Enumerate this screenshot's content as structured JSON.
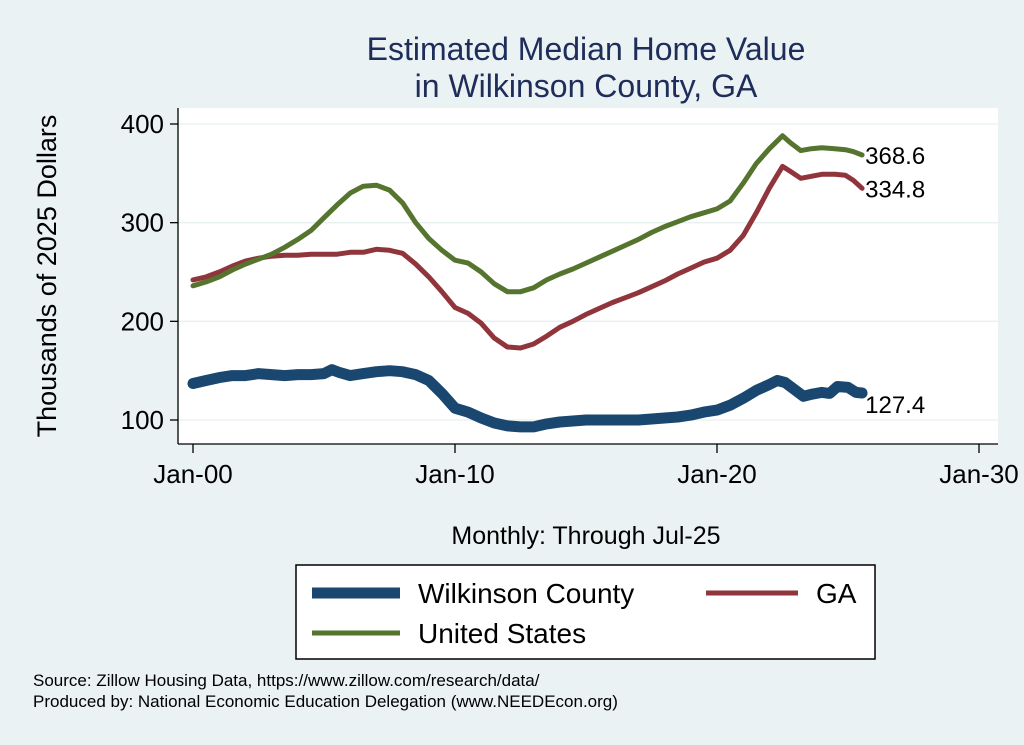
{
  "chart_data": {
    "type": "line",
    "title": [
      "Estimated Median Home Value",
      "in Wilkinson County, GA"
    ],
    "xlabel": "Monthly: Through Jul-25",
    "ylabel": "Thousands of 2025 Dollars",
    "xlim": [
      2000.0,
      2030.0
    ],
    "ylim": [
      100,
      400
    ],
    "x_ticks": [
      {
        "value": 2000,
        "label": "Jan-00"
      },
      {
        "value": 2010,
        "label": "Jan-10"
      },
      {
        "value": 2020,
        "label": "Jan-20"
      },
      {
        "value": 2030,
        "label": "Jan-30"
      }
    ],
    "y_ticks": [
      100,
      200,
      300,
      400
    ],
    "grid": true,
    "legend_position": "bottom",
    "series": [
      {
        "name": "Wilkinson County",
        "color": "#1a476f",
        "end_label": "127.4",
        "points": [
          [
            2000.0,
            137
          ],
          [
            2000.5,
            140
          ],
          [
            2001.0,
            143
          ],
          [
            2001.5,
            145
          ],
          [
            2002.0,
            145
          ],
          [
            2002.5,
            147
          ],
          [
            2003.0,
            146
          ],
          [
            2003.5,
            145
          ],
          [
            2004.0,
            146
          ],
          [
            2004.5,
            146
          ],
          [
            2005.0,
            147
          ],
          [
            2005.3,
            151
          ],
          [
            2005.6,
            148
          ],
          [
            2006.0,
            145
          ],
          [
            2006.5,
            147
          ],
          [
            2007.0,
            149
          ],
          [
            2007.5,
            150
          ],
          [
            2008.0,
            149
          ],
          [
            2008.5,
            146
          ],
          [
            2009.0,
            140
          ],
          [
            2009.5,
            127
          ],
          [
            2010.0,
            112
          ],
          [
            2010.5,
            108
          ],
          [
            2011.0,
            102
          ],
          [
            2011.5,
            97
          ],
          [
            2012.0,
            94
          ],
          [
            2012.5,
            93
          ],
          [
            2013.0,
            93
          ],
          [
            2013.5,
            96
          ],
          [
            2014.0,
            98
          ],
          [
            2014.5,
            99
          ],
          [
            2015.0,
            100
          ],
          [
            2015.5,
            100
          ],
          [
            2016.0,
            100
          ],
          [
            2016.5,
            100
          ],
          [
            2017.0,
            100
          ],
          [
            2017.5,
            101
          ],
          [
            2018.0,
            102
          ],
          [
            2018.5,
            103
          ],
          [
            2019.0,
            105
          ],
          [
            2019.5,
            108
          ],
          [
            2020.0,
            110
          ],
          [
            2020.5,
            115
          ],
          [
            2021.0,
            122
          ],
          [
            2021.5,
            130
          ],
          [
            2022.0,
            136
          ],
          [
            2022.3,
            140
          ],
          [
            2022.6,
            138
          ],
          [
            2023.0,
            130
          ],
          [
            2023.3,
            124
          ],
          [
            2023.6,
            126
          ],
          [
            2024.0,
            128
          ],
          [
            2024.3,
            127
          ],
          [
            2024.6,
            134
          ],
          [
            2025.0,
            133
          ],
          [
            2025.3,
            128
          ],
          [
            2025.54,
            127.4
          ]
        ]
      },
      {
        "name": "GA",
        "color": "#90353b",
        "end_label": "334.8",
        "points": [
          [
            2000.0,
            242
          ],
          [
            2000.5,
            245
          ],
          [
            2001.0,
            250
          ],
          [
            2001.5,
            256
          ],
          [
            2002.0,
            261
          ],
          [
            2002.5,
            264
          ],
          [
            2003.0,
            266
          ],
          [
            2003.5,
            267
          ],
          [
            2004.0,
            267
          ],
          [
            2004.5,
            268
          ],
          [
            2005.0,
            268
          ],
          [
            2005.5,
            268
          ],
          [
            2006.0,
            270
          ],
          [
            2006.5,
            270
          ],
          [
            2007.0,
            273
          ],
          [
            2007.5,
            272
          ],
          [
            2008.0,
            269
          ],
          [
            2008.5,
            258
          ],
          [
            2009.0,
            245
          ],
          [
            2009.5,
            230
          ],
          [
            2010.0,
            214
          ],
          [
            2010.5,
            208
          ],
          [
            2011.0,
            198
          ],
          [
            2011.5,
            183
          ],
          [
            2012.0,
            174
          ],
          [
            2012.5,
            173
          ],
          [
            2013.0,
            177
          ],
          [
            2013.5,
            185
          ],
          [
            2014.0,
            194
          ],
          [
            2014.5,
            200
          ],
          [
            2015.0,
            207
          ],
          [
            2015.5,
            213
          ],
          [
            2016.0,
            219
          ],
          [
            2016.5,
            224
          ],
          [
            2017.0,
            229
          ],
          [
            2017.5,
            235
          ],
          [
            2018.0,
            241
          ],
          [
            2018.5,
            248
          ],
          [
            2019.0,
            254
          ],
          [
            2019.5,
            260
          ],
          [
            2020.0,
            264
          ],
          [
            2020.5,
            272
          ],
          [
            2021.0,
            287
          ],
          [
            2021.5,
            310
          ],
          [
            2022.0,
            335
          ],
          [
            2022.5,
            357
          ],
          [
            2022.8,
            352
          ],
          [
            2023.2,
            345
          ],
          [
            2023.6,
            347
          ],
          [
            2024.0,
            349
          ],
          [
            2024.5,
            349
          ],
          [
            2024.9,
            348
          ],
          [
            2025.2,
            343
          ],
          [
            2025.54,
            334.8
          ]
        ]
      },
      {
        "name": "United States",
        "color": "#55752f",
        "end_label": "368.6",
        "points": [
          [
            2000.0,
            236
          ],
          [
            2000.5,
            240
          ],
          [
            2001.0,
            245
          ],
          [
            2001.5,
            252
          ],
          [
            2002.0,
            258
          ],
          [
            2002.5,
            263
          ],
          [
            2003.0,
            268
          ],
          [
            2003.5,
            275
          ],
          [
            2004.0,
            283
          ],
          [
            2004.5,
            292
          ],
          [
            2005.0,
            305
          ],
          [
            2005.5,
            318
          ],
          [
            2006.0,
            330
          ],
          [
            2006.5,
            337
          ],
          [
            2007.0,
            338
          ],
          [
            2007.5,
            333
          ],
          [
            2008.0,
            320
          ],
          [
            2008.5,
            300
          ],
          [
            2009.0,
            284
          ],
          [
            2009.5,
            272
          ],
          [
            2010.0,
            262
          ],
          [
            2010.5,
            259
          ],
          [
            2011.0,
            250
          ],
          [
            2011.5,
            238
          ],
          [
            2012.0,
            230
          ],
          [
            2012.5,
            230
          ],
          [
            2013.0,
            234
          ],
          [
            2013.5,
            242
          ],
          [
            2014.0,
            248
          ],
          [
            2014.5,
            253
          ],
          [
            2015.0,
            259
          ],
          [
            2015.5,
            265
          ],
          [
            2016.0,
            271
          ],
          [
            2016.5,
            277
          ],
          [
            2017.0,
            283
          ],
          [
            2017.5,
            290
          ],
          [
            2018.0,
            296
          ],
          [
            2018.5,
            301
          ],
          [
            2019.0,
            306
          ],
          [
            2019.5,
            310
          ],
          [
            2020.0,
            314
          ],
          [
            2020.5,
            322
          ],
          [
            2021.0,
            340
          ],
          [
            2021.5,
            360
          ],
          [
            2022.0,
            375
          ],
          [
            2022.5,
            388
          ],
          [
            2022.8,
            381
          ],
          [
            2023.2,
            373
          ],
          [
            2023.6,
            375
          ],
          [
            2024.0,
            376
          ],
          [
            2024.5,
            375
          ],
          [
            2024.9,
            374
          ],
          [
            2025.2,
            372
          ],
          [
            2025.54,
            368.6
          ]
        ]
      }
    ],
    "source_lines": [
      "Source: Zillow Housing Data, https://www.zillow.com/research/data/",
      "Produced by: National Economic Education Delegation (www.NEEDEcon.org)"
    ]
  }
}
